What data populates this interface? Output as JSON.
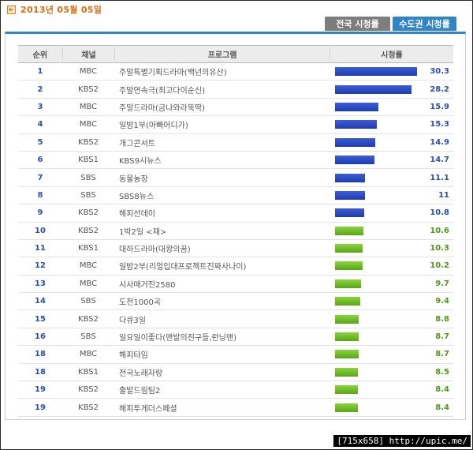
{
  "date_label": "2013년 05월 05일",
  "tabs": [
    {
      "label": "전국 시청률",
      "active": false
    },
    {
      "label": "수도권 시청률",
      "active": true
    }
  ],
  "columns": {
    "rank": "순위",
    "channel": "채널",
    "program": "프로그램",
    "rating": "시청률"
  },
  "colors": {
    "top_bar": "#1f3bb0",
    "other_bar": "#5aa519",
    "tab_active": "#2f85c7",
    "date": "#e06a10"
  },
  "rows": [
    {
      "rank": "1",
      "channel": "MBC",
      "program": "주말특별기획드라마(백년의유산)",
      "rating": "30.3",
      "value": 30.3
    },
    {
      "rank": "2",
      "channel": "KBS2",
      "program": "주말연속극(최고다이순신)",
      "rating": "28.2",
      "value": 28.2
    },
    {
      "rank": "3",
      "channel": "MBC",
      "program": "주말드라마(금나와라뚝딱)",
      "rating": "15.9",
      "value": 15.9
    },
    {
      "rank": "4",
      "channel": "MBC",
      "program": "일밤1부(아빠어디가)",
      "rating": "15.3",
      "value": 15.3
    },
    {
      "rank": "5",
      "channel": "KBS2",
      "program": "개그콘서트",
      "rating": "14.9",
      "value": 14.9
    },
    {
      "rank": "6",
      "channel": "KBS1",
      "program": "KBS9시뉴스",
      "rating": "14.7",
      "value": 14.7
    },
    {
      "rank": "7",
      "channel": "SBS",
      "program": "동물농장",
      "rating": "11.1",
      "value": 11.1
    },
    {
      "rank": "8",
      "channel": "SBS",
      "program": "SBS8뉴스",
      "rating": "11",
      "value": 11.0
    },
    {
      "rank": "9",
      "channel": "KBS2",
      "program": "해피선데이",
      "rating": "10.8",
      "value": 10.8
    },
    {
      "rank": "10",
      "channel": "KBS2",
      "program": "1박2일 <재>",
      "rating": "10.6",
      "value": 10.6
    },
    {
      "rank": "11",
      "channel": "KBS1",
      "program": "대하드라마(대왕의꿈)",
      "rating": "10.3",
      "value": 10.3
    },
    {
      "rank": "12",
      "channel": "MBC",
      "program": "일밤2부(리얼입대프로젝트진짜사나이)",
      "rating": "10.2",
      "value": 10.2
    },
    {
      "rank": "13",
      "channel": "MBC",
      "program": "시사매거진2580",
      "rating": "9.7",
      "value": 9.7
    },
    {
      "rank": "14",
      "channel": "SBS",
      "program": "도전1000곡",
      "rating": "9.4",
      "value": 9.4
    },
    {
      "rank": "15",
      "channel": "KBS2",
      "program": "다큐3일",
      "rating": "8.8",
      "value": 8.8
    },
    {
      "rank": "16",
      "channel": "SBS",
      "program": "일요일이좋다(맨발의친구들,런닝맨)",
      "rating": "8.7",
      "value": 8.7
    },
    {
      "rank": "18",
      "channel": "MBC",
      "program": "해피타임",
      "rating": "8.7",
      "value": 8.7
    },
    {
      "rank": "18",
      "channel": "KBS1",
      "program": "전국노래자랑",
      "rating": "8.5",
      "value": 8.5
    },
    {
      "rank": "19",
      "channel": "KBS2",
      "program": "출발드림팀2",
      "rating": "8.4",
      "value": 8.4
    },
    {
      "rank": "19",
      "channel": "KBS2",
      "program": "해피투게더스페셜",
      "rating": "8.4",
      "value": 8.4
    }
  ],
  "watermark": "[715x658] http://upic.me/"
}
